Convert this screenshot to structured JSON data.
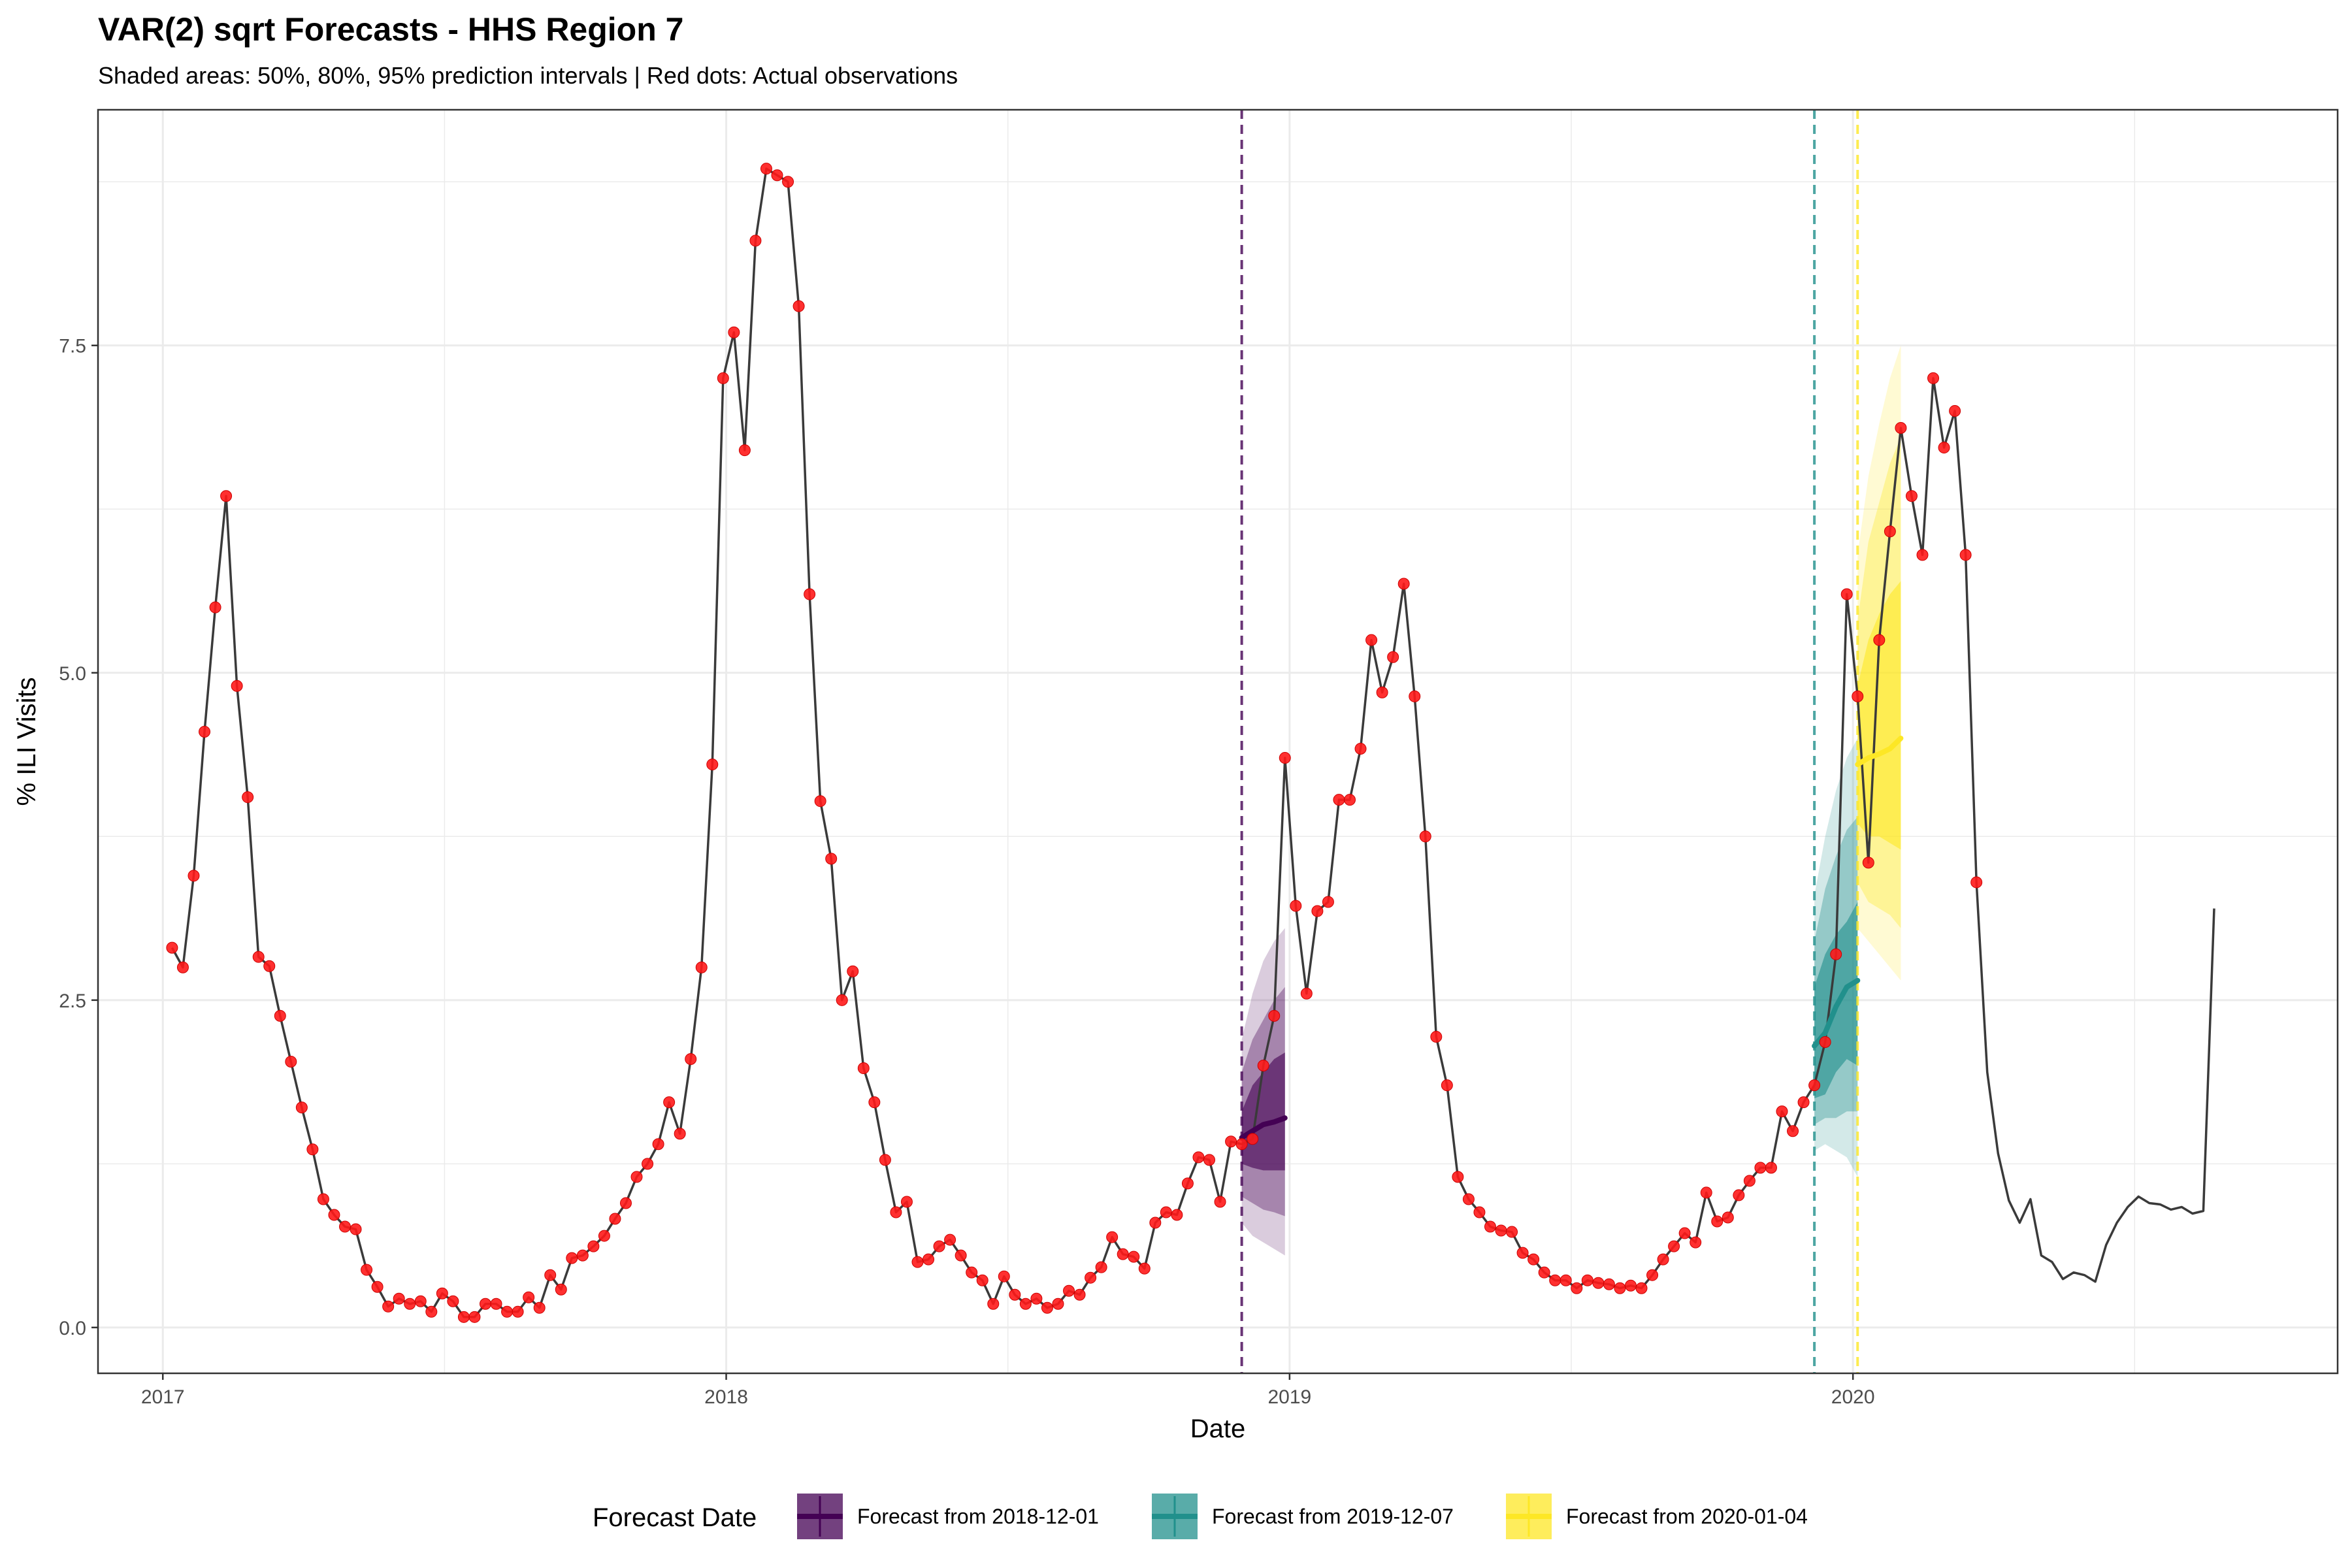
{
  "title": "VAR(2) sqrt Forecasts - HHS Region 7",
  "subtitle": "Shaded areas: 50%, 80%, 95% prediction intervals | Red dots: Actual observations",
  "colors": {
    "history_line": "#3a3a3a",
    "observations": "#ff1a1a",
    "grid": "#ebebeb",
    "panel_border": "#333333",
    "forecast_2018": "#440154",
    "forecast_2019": "#21908c",
    "forecast_2020": "#fde725"
  },
  "chart_data": {
    "type": "line",
    "title": "VAR(2) sqrt Forecasts - HHS Region 7",
    "subtitle": "Shaded areas: 50%, 80%, 95% prediction intervals | Red dots: Actual observations",
    "xlabel": "Date",
    "ylabel": "% ILI Visits",
    "x_type": "date",
    "xlim": [
      "2016-11-20",
      "2020-11-10"
    ],
    "ylim": [
      -0.35,
      9.3
    ],
    "x_ticks": [
      "2017-01-01",
      "2018-01-01",
      "2019-01-01",
      "2020-01-01"
    ],
    "x_tick_labels": [
      "2017",
      "2018",
      "2019",
      "2020"
    ],
    "y_ticks": [
      0,
      2.5,
      5,
      7.5
    ],
    "y_tick_labels": [
      "0.0",
      "2.5",
      "5.0",
      "7.5"
    ],
    "grid": true,
    "legend_position": "bottom",
    "legend_title": "Forecast Date",
    "history_series": {
      "start_date": "2017-01-07",
      "interval_days": 7,
      "values": [
        2.9,
        2.75,
        3.45,
        4.55,
        5.5,
        6.35,
        4.9,
        4.05,
        2.83,
        2.76,
        2.38,
        2.03,
        1.68,
        1.36,
        0.98,
        0.86,
        0.77,
        0.75,
        0.44,
        0.31,
        0.16,
        0.22,
        0.18,
        0.2,
        0.12,
        0.26,
        0.2,
        0.08,
        0.08,
        0.18,
        0.18,
        0.12,
        0.12,
        0.23,
        0.15,
        0.4,
        0.29,
        0.53,
        0.55,
        0.62,
        0.7,
        0.83,
        0.95,
        1.15,
        1.25,
        1.4,
        1.72,
        1.48,
        2.05,
        2.75,
        4.3,
        7.25,
        7.6,
        6.7,
        8.3,
        8.85,
        8.8,
        8.75,
        7.8,
        5.6,
        4.02,
        3.58,
        2.5,
        2.72,
        1.98,
        1.72,
        1.28,
        0.88,
        0.96,
        0.5,
        0.52,
        0.62,
        0.67,
        0.55,
        0.42,
        0.36,
        0.18,
        0.39,
        0.25,
        0.18,
        0.22,
        0.15,
        0.18,
        0.28,
        0.25,
        0.38,
        0.46,
        0.69,
        0.56,
        0.54,
        0.45,
        0.8,
        0.88,
        0.86,
        1.1,
        1.3,
        1.28,
        0.96,
        1.42,
        1.4,
        1.44,
        2.0,
        2.38,
        4.35,
        3.22,
        2.55,
        3.18,
        3.25,
        4.03,
        4.03,
        4.42,
        5.25,
        4.85,
        5.12,
        5.68,
        4.82,
        3.75,
        2.22,
        1.85,
        1.15,
        0.98,
        0.88,
        0.77,
        0.74,
        0.73,
        0.57,
        0.52,
        0.42,
        0.36,
        0.36,
        0.3,
        0.36,
        0.34,
        0.33,
        0.3,
        0.32,
        0.3,
        0.4,
        0.52,
        0.62,
        0.72,
        0.65,
        1.03,
        0.81,
        0.84,
        1.01,
        1.12,
        1.22,
        1.22,
        1.65,
        1.5,
        1.72,
        1.85,
        2.18,
        2.85,
        5.6,
        4.82,
        3.55,
        5.25,
        6.08,
        6.87,
        6.35,
        5.9,
        7.25,
        6.72,
        7.0,
        5.9,
        3.4,
        1.95,
        1.33,
        0.97,
        0.8,
        0.98,
        0.55,
        0.5,
        0.37,
        0.42,
        0.4,
        0.35,
        0.63,
        0.8,
        0.92,
        1.0,
        0.95,
        0.94,
        0.9,
        0.92,
        0.87,
        0.89,
        3.2
      ]
    },
    "observations": {
      "start_date": "2017-01-07",
      "interval_days": 7,
      "count": 168
    },
    "forecast_origins": [
      "2018-12-01",
      "2019-12-07",
      "2020-01-04"
    ],
    "forecasts": [
      {
        "name": "Forecast from 2018-12-01",
        "dates": [
          "2018-12-01",
          "2018-12-08",
          "2018-12-15",
          "2018-12-22",
          "2018-12-29"
        ],
        "median": [
          1.45,
          1.5,
          1.55,
          1.57,
          1.6
        ],
        "lo50": [
          1.25,
          1.22,
          1.2,
          1.2,
          1.2
        ],
        "hi50": [
          1.65,
          1.85,
          1.95,
          2.05,
          2.1
        ],
        "lo80": [
          1.0,
          0.95,
          0.9,
          0.88,
          0.85
        ],
        "hi80": [
          1.95,
          2.2,
          2.35,
          2.5,
          2.6
        ],
        "lo95": [
          0.8,
          0.7,
          0.65,
          0.6,
          0.55
        ],
        "hi95": [
          2.2,
          2.55,
          2.8,
          2.95,
          3.05
        ]
      },
      {
        "name": "Forecast from 2019-12-07",
        "dates": [
          "2019-12-07",
          "2019-12-14",
          "2019-12-21",
          "2019-12-28",
          "2020-01-04"
        ],
        "median": [
          2.15,
          2.25,
          2.45,
          2.6,
          2.65
        ],
        "lo50": [
          1.75,
          1.78,
          1.95,
          2.05,
          2.0
        ],
        "hi50": [
          2.6,
          2.85,
          3.0,
          3.1,
          3.25
        ],
        "lo80": [
          1.55,
          1.6,
          1.6,
          1.65,
          1.65
        ],
        "hi80": [
          2.95,
          3.35,
          3.6,
          3.8,
          3.9
        ],
        "lo95": [
          1.35,
          1.4,
          1.35,
          1.3,
          1.15
        ],
        "hi95": [
          3.3,
          3.75,
          4.1,
          4.35,
          4.5
        ]
      },
      {
        "name": "Forecast from 2020-01-04",
        "dates": [
          "2020-01-04",
          "2020-01-11",
          "2020-01-18",
          "2020-01-25",
          "2020-02-01"
        ],
        "median": [
          4.3,
          4.35,
          4.38,
          4.42,
          4.5
        ],
        "lo50": [
          3.85,
          3.75,
          3.75,
          3.7,
          3.65
        ],
        "hi50": [
          4.9,
          5.25,
          5.45,
          5.6,
          5.7
        ],
        "lo80": [
          3.4,
          3.25,
          3.2,
          3.15,
          3.05
        ],
        "hi80": [
          5.4,
          6.0,
          6.3,
          6.6,
          6.8
        ],
        "lo95": [
          3.05,
          2.95,
          2.85,
          2.75,
          2.65
        ],
        "hi95": [
          5.9,
          6.5,
          6.9,
          7.25,
          7.5
        ]
      }
    ]
  }
}
